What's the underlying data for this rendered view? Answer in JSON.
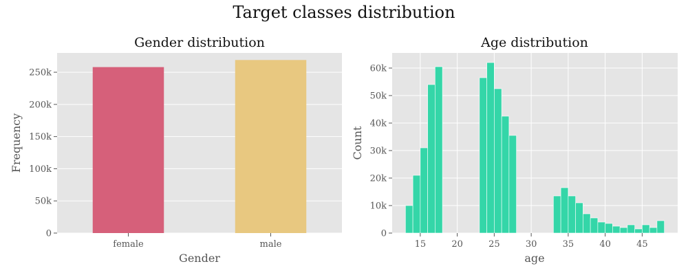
{
  "figure": {
    "title": "Target classes distribution"
  },
  "colors": {
    "panel_background": "#e5e5e5",
    "grid": "#ffffff",
    "female_bar": "#d6607a",
    "male_bar": "#e8c880",
    "histogram_bar": "#34d6a8"
  },
  "chart_data": [
    {
      "type": "bar",
      "title": "Gender distribution",
      "xlabel": "Gender",
      "ylabel": "Frequency",
      "categories": [
        "female",
        "male"
      ],
      "values": [
        258000,
        269000
      ],
      "ylim": [
        0,
        280000
      ],
      "yticks": [
        0,
        50000,
        100000,
        150000,
        200000,
        250000
      ],
      "ytick_labels": [
        "0",
        "50k",
        "100k",
        "150k",
        "200k",
        "250k"
      ],
      "grid": true,
      "legend": "none"
    },
    {
      "type": "bar",
      "title": "Age distribution",
      "xlabel": "age",
      "ylabel": "Count",
      "bin_width": 1,
      "bins": [
        {
          "x": 13,
          "count": 10000
        },
        {
          "x": 14,
          "count": 21000
        },
        {
          "x": 15,
          "count": 31000
        },
        {
          "x": 16,
          "count": 54000
        },
        {
          "x": 17,
          "count": 60500
        },
        {
          "x": 23,
          "count": 56500
        },
        {
          "x": 24,
          "count": 62000
        },
        {
          "x": 25,
          "count": 52500
        },
        {
          "x": 26,
          "count": 42500
        },
        {
          "x": 27,
          "count": 35500
        },
        {
          "x": 33,
          "count": 13500
        },
        {
          "x": 34,
          "count": 16500
        },
        {
          "x": 35,
          "count": 13500
        },
        {
          "x": 36,
          "count": 11000
        },
        {
          "x": 37,
          "count": 7000
        },
        {
          "x": 38,
          "count": 5500
        },
        {
          "x": 39,
          "count": 4000
        },
        {
          "x": 40,
          "count": 3500
        },
        {
          "x": 41,
          "count": 2500
        },
        {
          "x": 42,
          "count": 2000
        },
        {
          "x": 43,
          "count": 3000
        },
        {
          "x": 44,
          "count": 1500
        },
        {
          "x": 45,
          "count": 3000
        },
        {
          "x": 46,
          "count": 2000
        },
        {
          "x": 47,
          "count": 4500
        }
      ],
      "xlim": [
        11.2,
        49.8
      ],
      "ylim": [
        0,
        65500
      ],
      "xticks": [
        15,
        20,
        25,
        30,
        35,
        40,
        45
      ],
      "xtick_labels": [
        "15",
        "20",
        "25",
        "30",
        "35",
        "40",
        "45"
      ],
      "yticks": [
        0,
        10000,
        20000,
        30000,
        40000,
        50000,
        60000
      ],
      "ytick_labels": [
        "0",
        "10k",
        "20k",
        "30k",
        "40k",
        "50k",
        "60k"
      ],
      "grid": true,
      "legend": "none"
    }
  ]
}
